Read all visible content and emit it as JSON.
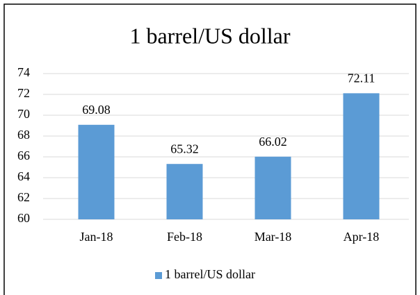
{
  "chart_data": {
    "type": "bar",
    "title": "1 barrel/US dollar",
    "categories": [
      "Jan-18",
      "Feb-18",
      "Mar-18",
      "Apr-18"
    ],
    "series": [
      {
        "name": "1 barrel/US dollar",
        "color": "#5b9bd5",
        "values": [
          69.08,
          65.32,
          66.02,
          72.11
        ]
      }
    ],
    "ylim": [
      60,
      74
    ],
    "yticks": [
      60,
      62,
      64,
      66,
      68,
      70,
      72,
      74
    ],
    "grid": true,
    "legend": "bottom"
  }
}
